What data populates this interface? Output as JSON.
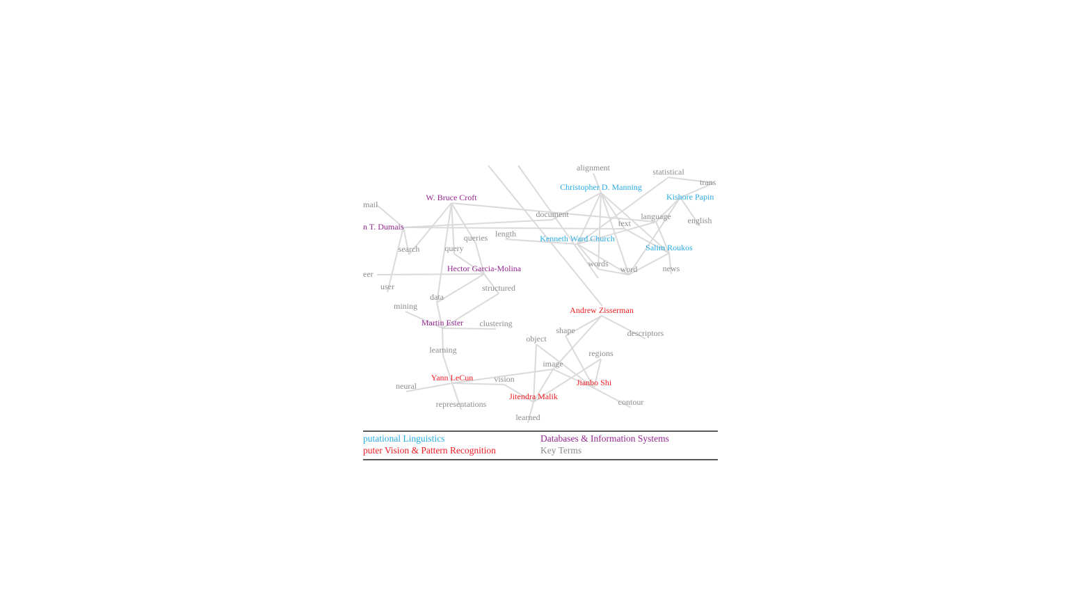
{
  "nodes": [
    {
      "label": "Christopher D. Manning",
      "color": "#29abe2"
    },
    {
      "label": "Kishore Papin",
      "color": "#29abe2"
    },
    {
      "label": "Kenneth Ward Church",
      "color": "#29abe2"
    },
    {
      "label": "Salim Roukos",
      "color": "#29abe2"
    },
    {
      "label": "W. Bruce Croft",
      "color": "#93278f"
    },
    {
      "label": "n T. Dumais",
      "color": "#93278f"
    },
    {
      "label": "Hector Garcia-Molina",
      "color": "#93278f"
    },
    {
      "label": "Martin Ester",
      "color": "#93278f"
    },
    {
      "label": "Andrew Zisserman",
      "color": "#ed1c24"
    },
    {
      "label": "Yann LeCun",
      "color": "#ed1c24"
    },
    {
      "label": "Jitendra Malik",
      "color": "#ed1c24"
    },
    {
      "label": "Jianbo Shi",
      "color": "#ed1c24"
    },
    {
      "label": "alignment",
      "color": "#8c8c8c"
    },
    {
      "label": "statistical",
      "color": "#8c8c8c"
    },
    {
      "label": "trans",
      "color": "#8c8c8c"
    },
    {
      "label": "mail",
      "color": "#8c8c8c"
    },
    {
      "label": "document",
      "color": "#8c8c8c"
    },
    {
      "label": "language",
      "color": "#8c8c8c"
    },
    {
      "label": "text",
      "color": "#8c8c8c"
    },
    {
      "label": "english",
      "color": "#8c8c8c"
    },
    {
      "label": "length",
      "color": "#8c8c8c"
    },
    {
      "label": "queries",
      "color": "#8c8c8c"
    },
    {
      "label": "search",
      "color": "#8c8c8c"
    },
    {
      "label": "query",
      "color": "#8c8c8c"
    },
    {
      "label": "words",
      "color": "#8c8c8c"
    },
    {
      "label": "word",
      "color": "#8c8c8c"
    },
    {
      "label": "news",
      "color": "#8c8c8c"
    },
    {
      "label": "eer",
      "color": "#8c8c8c"
    },
    {
      "label": "user",
      "color": "#8c8c8c"
    },
    {
      "label": "structured",
      "color": "#8c8c8c"
    },
    {
      "label": "data",
      "color": "#8c8c8c"
    },
    {
      "label": "mining",
      "color": "#8c8c8c"
    },
    {
      "label": "clustering",
      "color": "#8c8c8c"
    },
    {
      "label": "shape",
      "color": "#8c8c8c"
    },
    {
      "label": "descriptors",
      "color": "#8c8c8c"
    },
    {
      "label": "object",
      "color": "#8c8c8c"
    },
    {
      "label": "learning",
      "color": "#8c8c8c"
    },
    {
      "label": "regions",
      "color": "#8c8c8c"
    },
    {
      "label": "image",
      "color": "#8c8c8c"
    },
    {
      "label": "vision",
      "color": "#8c8c8c"
    },
    {
      "label": "neural",
      "color": "#8c8c8c"
    },
    {
      "label": "contour",
      "color": "#8c8c8c"
    },
    {
      "label": "representations",
      "color": "#8c8c8c"
    },
    {
      "label": "learned",
      "color": "#8c8c8c"
    }
  ],
  "legend": [
    {
      "label": "putational Linguistics",
      "color": "#29abe2"
    },
    {
      "label": "puter Vision & Pattern Recognition",
      "color": "#ed1c24"
    },
    {
      "label": "Databases & Information Systems",
      "color": "#93278f"
    },
    {
      "label": "Key Terms",
      "color": "#8c8c8c"
    }
  ]
}
